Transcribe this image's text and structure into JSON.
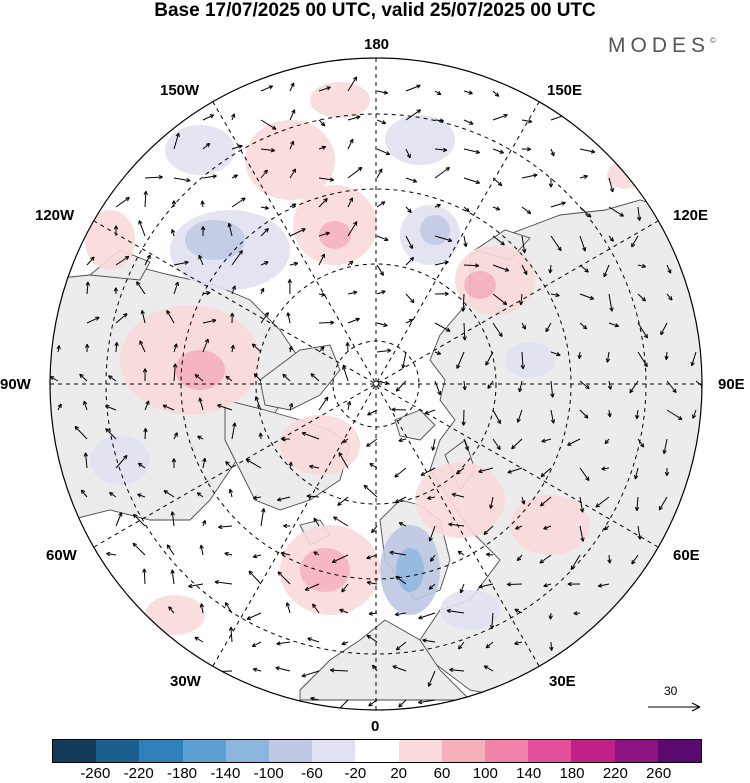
{
  "title": "Base 17/07/2025 00 UTC, valid 25/07/2025 00 UTC",
  "brand": "MODES",
  "brand_mark": "©",
  "map": {
    "projection": "north-polar-stereographic",
    "longitude_labels": {
      "top": "180",
      "top_right": "150E",
      "right_upper": "120E",
      "right": "90E",
      "right_lower": "60E",
      "bottom_right": "30E",
      "bottom": "0",
      "bottom_left": "30W",
      "left_lower": "60W",
      "left": "90W",
      "left_upper": "120W",
      "top_left": "150W"
    },
    "land_color": "#ececec",
    "ocean_color": "#ffffff",
    "grid_style": "dashed"
  },
  "vector_reference": {
    "value": "30"
  },
  "colorbar": {
    "colors": [
      "#123b5a",
      "#1b5f8f",
      "#2f80b9",
      "#5a9fd0",
      "#8db6de",
      "#bfc8e4",
      "#e2e1f1",
      "#ffffff",
      "#fadadb",
      "#f6b0bc",
      "#f183ab",
      "#e4509b",
      "#c12186",
      "#8d1380",
      "#5a0a6e"
    ],
    "ticks": [
      "-260",
      "-220",
      "-180",
      "-140",
      "-100",
      "-60",
      "-20",
      "20",
      "60",
      "100",
      "140",
      "180",
      "220",
      "260"
    ]
  }
}
